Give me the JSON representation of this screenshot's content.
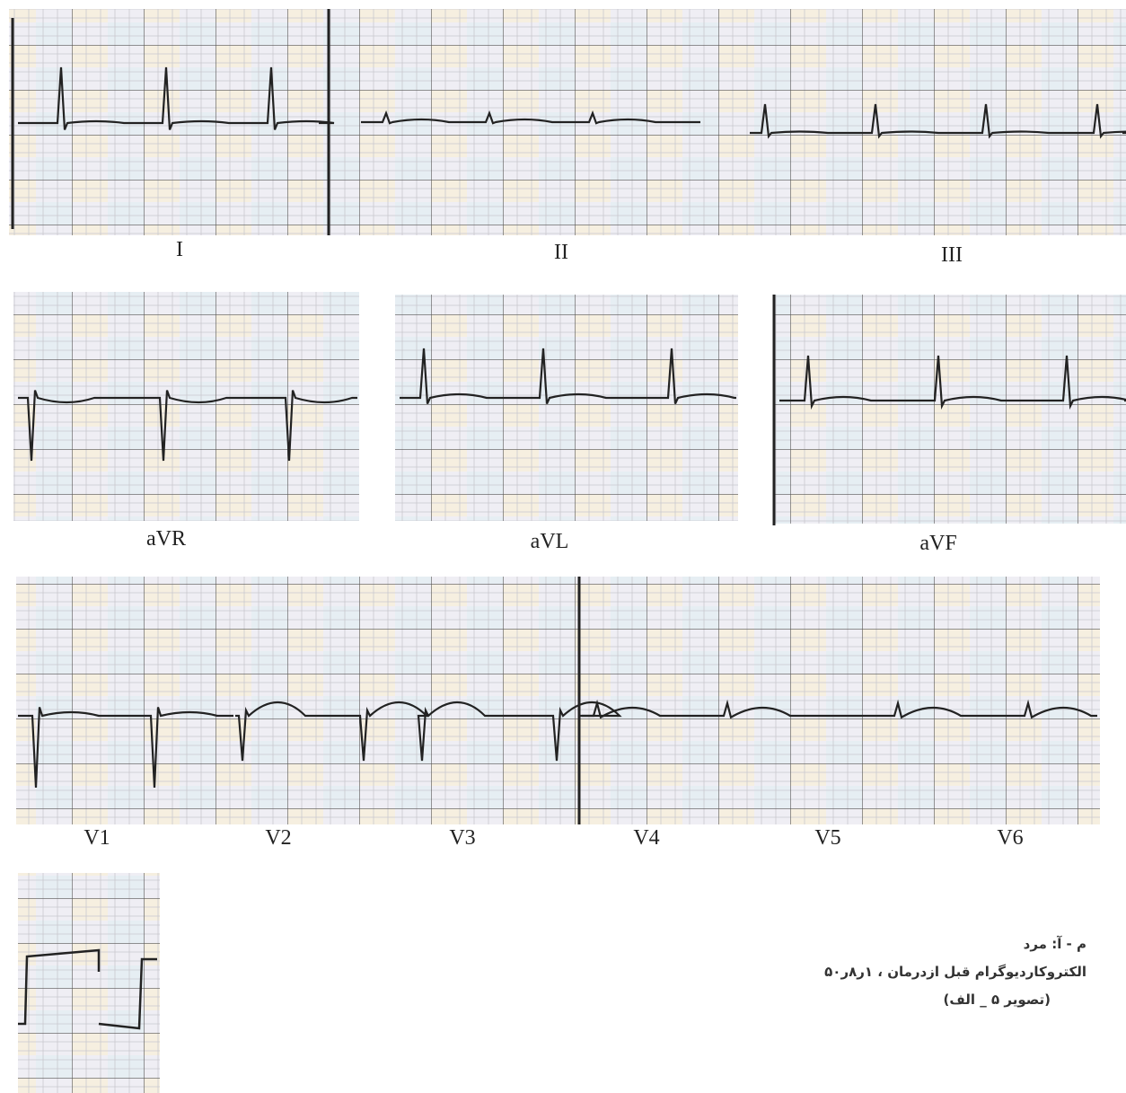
{
  "leads": [
    "I",
    "II",
    "III",
    "aVR",
    "aVL",
    "aVF",
    "V1",
    "V2",
    "V3",
    "V4",
    "V5",
    "V6"
  ],
  "caption": {
    "lines": [
      "م - آ: مرد",
      "الکتروکاردیوگرام قبل ازدرمان ، ۱ر۸ر۵۰",
      "(تصویر ۵ _ الف)"
    ]
  }
}
